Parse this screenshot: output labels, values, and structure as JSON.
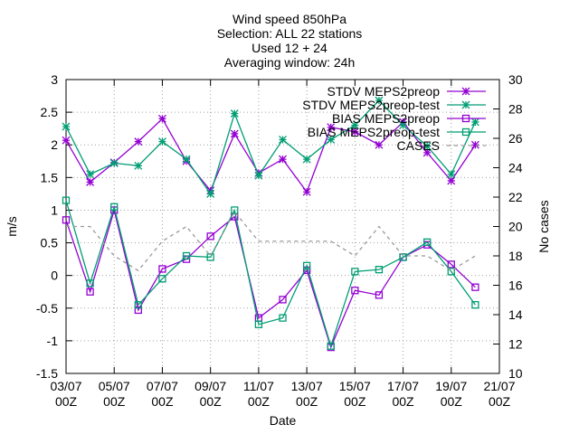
{
  "chart_data": {
    "type": "line",
    "title_lines": [
      "Wind speed 850hPa",
      "Selection: ALL      22 stations",
      "Used 12 + 24",
      "Averaging window: 24h"
    ],
    "xlabel": "Date",
    "ylabel": "m/s",
    "y2label": "No cases",
    "xlim": [
      0,
      36
    ],
    "ylim": [
      -1.5,
      3
    ],
    "y2lim": [
      10,
      30
    ],
    "grid": true,
    "legend_position": "top-right",
    "x_ticks": [
      {
        "x": 0,
        "line1": "03/07",
        "line2": "00Z"
      },
      {
        "x": 4,
        "line1": "05/07",
        "line2": "00Z"
      },
      {
        "x": 8,
        "line1": "07/07",
        "line2": "00Z"
      },
      {
        "x": 12,
        "line1": "09/07",
        "line2": "00Z"
      },
      {
        "x": 16,
        "line1": "11/07",
        "line2": "00Z"
      },
      {
        "x": 20,
        "line1": "13/07",
        "line2": "00Z"
      },
      {
        "x": 24,
        "line1": "15/07",
        "line2": "00Z"
      },
      {
        "x": 28,
        "line1": "17/07",
        "line2": "00Z"
      },
      {
        "x": 32,
        "line1": "19/07",
        "line2": "00Z"
      },
      {
        "x": 36,
        "line1": "21/07",
        "line2": "00Z"
      }
    ],
    "y_ticks": [
      "-1.5",
      "-1",
      "-0.5",
      "0",
      "0.5",
      "1",
      "1.5",
      "2",
      "2.5",
      "3"
    ],
    "y2_ticks": [
      "10",
      "12",
      "14",
      "16",
      "18",
      "20",
      "22",
      "24",
      "26",
      "28",
      "30"
    ],
    "x": [
      0,
      2,
      4,
      6,
      8,
      10,
      12,
      14,
      16,
      18,
      20,
      22,
      24,
      26,
      28,
      30,
      32,
      34
    ],
    "series": [
      {
        "name": "STDV MEPS2preop",
        "axis": "y",
        "color": "#9400d3",
        "marker": "star",
        "dash": "",
        "values": [
          2.07,
          1.43,
          1.73,
          2.05,
          2.4,
          1.75,
          1.3,
          2.17,
          1.57,
          1.78,
          1.28,
          2.27,
          2.2,
          2.0,
          2.35,
          1.88,
          1.45,
          2.0
        ]
      },
      {
        "name": "STDV MEPS2preop-test",
        "axis": "y",
        "color": "#009e73",
        "marker": "star",
        "dash": "",
        "values": [
          2.28,
          1.55,
          1.72,
          1.68,
          2.05,
          1.78,
          1.25,
          2.48,
          1.53,
          2.08,
          1.78,
          2.08,
          2.3,
          2.68,
          2.3,
          1.98,
          1.55,
          2.35
        ]
      },
      {
        "name": "BIAS MEPS2preop",
        "axis": "y",
        "color": "#9400d3",
        "marker": "square",
        "dash": "",
        "values": [
          0.85,
          -0.25,
          1.0,
          -0.53,
          0.1,
          0.25,
          0.6,
          0.9,
          -0.65,
          -0.37,
          0.08,
          -1.1,
          -0.23,
          -0.3,
          0.28,
          0.47,
          0.17,
          -0.18
        ]
      },
      {
        "name": "BIAS MEPS2preop-test",
        "axis": "y",
        "color": "#009e73",
        "marker": "square",
        "dash": "",
        "values": [
          1.15,
          -0.12,
          1.05,
          -0.45,
          -0.05,
          0.3,
          0.28,
          1.0,
          -0.75,
          -0.65,
          0.15,
          -1.08,
          0.06,
          0.09,
          0.28,
          0.51,
          0.06,
          -0.45
        ]
      },
      {
        "name": "CASES",
        "axis": "y2",
        "color": "#999999",
        "marker": "none",
        "dash": "4,4",
        "values": [
          20,
          20,
          18,
          17,
          19,
          20,
          18,
          21,
          19,
          19,
          19,
          19,
          18,
          20,
          18,
          18,
          17,
          18
        ]
      }
    ]
  }
}
